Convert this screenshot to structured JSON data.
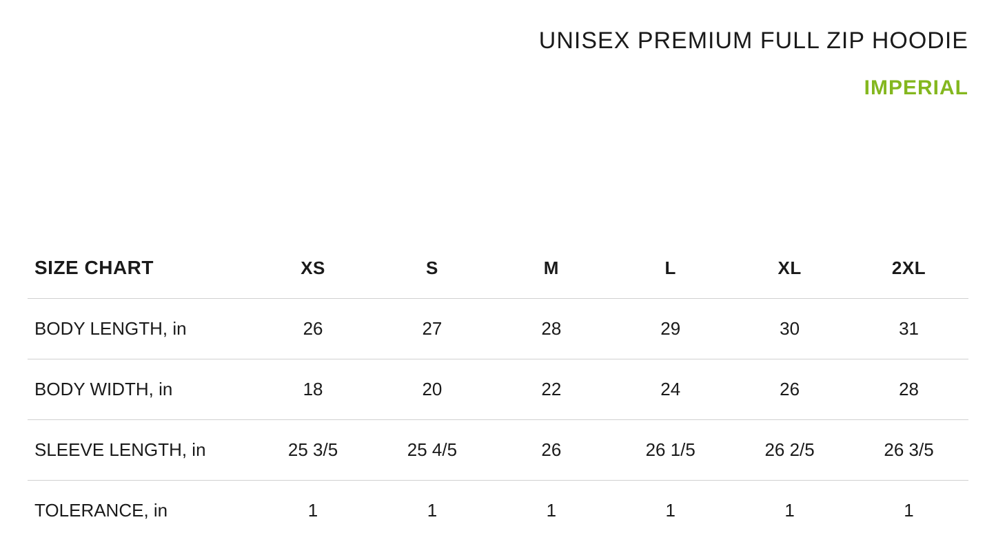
{
  "header": {
    "product_title": "UNISEX PREMIUM FULL ZIP HOODIE",
    "unit_label": "IMPERIAL"
  },
  "table": {
    "corner_label": "SIZE CHART",
    "columns": [
      "XS",
      "S",
      "M",
      "L",
      "XL",
      "2XL"
    ],
    "rows": [
      {
        "label": "BODY LENGTH, in",
        "values": [
          "26",
          "27",
          "28",
          "29",
          "30",
          "31"
        ]
      },
      {
        "label": "BODY WIDTH, in",
        "values": [
          "18",
          "20",
          "22",
          "24",
          "26",
          "28"
        ]
      },
      {
        "label": "SLEEVE LENGTH, in",
        "values": [
          "25 3/5",
          "25 4/5",
          "26",
          "26 1/5",
          "26 2/5",
          "26 3/5"
        ]
      },
      {
        "label": "TOLERANCE, in",
        "values": [
          "1",
          "1",
          "1",
          "1",
          "1",
          "1"
        ]
      }
    ]
  },
  "style": {
    "background_color": "#ffffff",
    "text_color": "#1a1a1a",
    "accent_color": "#84b71f",
    "border_color": "#d0d0d0",
    "title_fontsize": 34,
    "unit_fontsize": 30,
    "header_fontsize": 26,
    "cell_fontsize": 26,
    "col_widths_pct": [
      24,
      12.67,
      12.67,
      12.67,
      12.67,
      12.67,
      12.67
    ]
  }
}
